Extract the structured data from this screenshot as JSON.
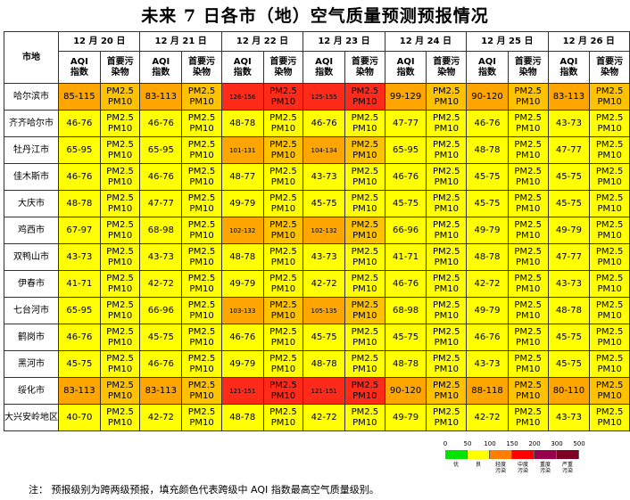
{
  "title": "未来 7 日各市（地）空气质量预测预报情况",
  "header": {
    "city_label": "市地",
    "dates": [
      "12 月 20 日",
      "12 月 21 日",
      "12 月 22 日",
      "12 月 23 日",
      "12 月 24 日",
      "12 月 25 日",
      "12 月 26 日"
    ],
    "aqi_label": "AQI 指数",
    "pollutant_label": "首要污染物"
  },
  "pollutant": {
    "line1": "PM2.5",
    "line2": "PM10"
  },
  "rows": [
    {
      "city": "哈尔滨市",
      "aqi": [
        "85-115",
        "83-113",
        "126-156",
        "125-155",
        "99-129",
        "90-120",
        "83-113"
      ],
      "color": [
        "o",
        "o",
        "r",
        "r",
        "o",
        "o",
        "o"
      ]
    },
    {
      "city": "齐齐哈尔市",
      "aqi": [
        "46-76",
        "46-76",
        "48-78",
        "46-76",
        "47-77",
        "46-76",
        "43-73"
      ],
      "color": [
        "y",
        "y",
        "y",
        "y",
        "y",
        "y",
        "y"
      ]
    },
    {
      "city": "牡丹江市",
      "aqi": [
        "65-95",
        "65-95",
        "101-131",
        "104-134",
        "65-95",
        "48-78",
        "47-77"
      ],
      "color": [
        "y",
        "y",
        "o",
        "o",
        "y",
        "y",
        "y"
      ]
    },
    {
      "city": "佳木斯市",
      "aqi": [
        "46-76",
        "46-76",
        "48-77",
        "43-73",
        "46-76",
        "45-75",
        "45-75"
      ],
      "color": [
        "y",
        "y",
        "y",
        "y",
        "y",
        "y",
        "y"
      ]
    },
    {
      "city": "大庆市",
      "aqi": [
        "48-78",
        "47-77",
        "49-79",
        "45-75",
        "45-75",
        "45-75",
        "45-75"
      ],
      "color": [
        "y",
        "y",
        "y",
        "y",
        "y",
        "y",
        "y"
      ]
    },
    {
      "city": "鸡西市",
      "aqi": [
        "67-97",
        "68-98",
        "102-132",
        "102-132",
        "66-96",
        "49-79",
        "49-79"
      ],
      "color": [
        "y",
        "y",
        "o",
        "o",
        "y",
        "y",
        "y"
      ]
    },
    {
      "city": "双鸭山市",
      "aqi": [
        "43-73",
        "43-73",
        "48-78",
        "43-73",
        "41-71",
        "48-78",
        "47-77"
      ],
      "color": [
        "y",
        "y",
        "y",
        "y",
        "y",
        "y",
        "y"
      ]
    },
    {
      "city": "伊春市",
      "aqi": [
        "41-71",
        "42-72",
        "49-79",
        "42-72",
        "46-76",
        "42-72",
        "43-73"
      ],
      "color": [
        "y",
        "y",
        "y",
        "y",
        "y",
        "y",
        "y"
      ]
    },
    {
      "city": "七台河市",
      "aqi": [
        "65-95",
        "66-96",
        "103-133",
        "105-135",
        "68-98",
        "49-79",
        "48-78"
      ],
      "color": [
        "y",
        "y",
        "o",
        "o",
        "y",
        "y",
        "y"
      ]
    },
    {
      "city": "鹤岗市",
      "aqi": [
        "46-76",
        "45-75",
        "46-76",
        "45-75",
        "45-75",
        "46-76",
        "45-75"
      ],
      "color": [
        "y",
        "y",
        "y",
        "y",
        "y",
        "y",
        "y"
      ]
    },
    {
      "city": "黑河市",
      "aqi": [
        "45-75",
        "46-76",
        "49-79",
        "48-78",
        "48-78",
        "43-73",
        "45-75"
      ],
      "color": [
        "y",
        "y",
        "y",
        "y",
        "y",
        "y",
        "y"
      ]
    },
    {
      "city": "绥化市",
      "aqi": [
        "83-113",
        "83-113",
        "121-151",
        "121-151",
        "90-120",
        "88-118",
        "80-110"
      ],
      "color": [
        "o",
        "o",
        "r",
        "r",
        "o",
        "o",
        "o"
      ]
    },
    {
      "city": "大兴安岭地区",
      "aqi": [
        "40-70",
        "42-72",
        "48-78",
        "42-72",
        "49-79",
        "42-72",
        "43-73"
      ],
      "color": [
        "y",
        "y",
        "y",
        "y",
        "y",
        "y",
        "y"
      ]
    }
  ],
  "legend": {
    "ticks": [
      "0",
      "50",
      "100",
      "150",
      "200",
      "300",
      "500"
    ],
    "levels": [
      "优",
      "良",
      "轻度污染",
      "中度污染",
      "重度污染",
      "严重污染"
    ],
    "colors": [
      "#00e400",
      "#ffff00",
      "#ff7e00",
      "#ff0000",
      "#99004c",
      "#7e0023"
    ]
  },
  "note": "注：  预报级别为跨两级预报，填充颜色代表跨级中 AQI 指数最高空气质量级别。"
}
